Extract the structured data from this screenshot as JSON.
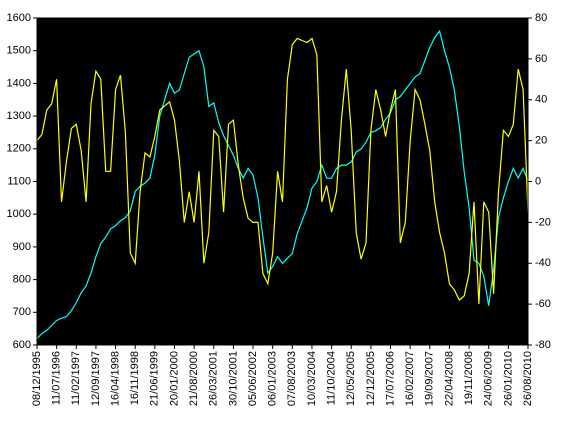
{
  "chart_data": {
    "type": "line",
    "categories": [
      "08/12/1995",
      null,
      null,
      null,
      "11/07/1996",
      null,
      null,
      null,
      "11/02/1997",
      null,
      null,
      null,
      "12/09/1997",
      null,
      null,
      null,
      "16/04/1998",
      null,
      null,
      null,
      "16/11/1998",
      null,
      null,
      null,
      "21/06/1999",
      null,
      null,
      null,
      "20/01/2000",
      null,
      null,
      null,
      "21/08/2000",
      null,
      null,
      null,
      "26/03/2001",
      null,
      null,
      null,
      "30/10/2001",
      null,
      null,
      null,
      "05/06/2002",
      null,
      null,
      null,
      "06/01/2003",
      null,
      null,
      null,
      "07/08/2003",
      null,
      null,
      null,
      "10/03/2004",
      null,
      null,
      null,
      "11/10/2004",
      null,
      null,
      null,
      "12/05/2005",
      null,
      null,
      null,
      "12/12/2005",
      null,
      null,
      null,
      "17/07/2006",
      null,
      null,
      null,
      "16/02/2007",
      null,
      null,
      null,
      "19/09/2007",
      null,
      null,
      null,
      "22/04/2008",
      null,
      null,
      null,
      "19/11/2008",
      null,
      null,
      null,
      "24/06/2009",
      null,
      null,
      null,
      "26/01/2010",
      null,
      null,
      null,
      "26/08/2010"
    ],
    "series": [
      {
        "color": "#00ffff",
        "axis": "y",
        "values": [
          620,
          635,
          645,
          660,
          675,
          682,
          687,
          705,
          730,
          760,
          780,
          820,
          870,
          910,
          930,
          955,
          965,
          980,
          990,
          1010,
          1070,
          1085,
          1095,
          1110,
          1180,
          1300,
          1350,
          1400,
          1370,
          1380,
          1430,
          1480,
          1490,
          1500,
          1450,
          1330,
          1340,
          1280,
          1240,
          1210,
          1180,
          1140,
          1110,
          1140,
          1120,
          1050,
          930,
          820,
          840,
          870,
          850,
          865,
          880,
          940,
          980,
          1020,
          1080,
          1100,
          1150,
          1110,
          1110,
          1140,
          1150,
          1150,
          1160,
          1190,
          1200,
          1220,
          1250,
          1255,
          1265,
          1290,
          1310,
          1350,
          1360,
          1380,
          1400,
          1420,
          1430,
          1470,
          1510,
          1540,
          1560,
          1500,
          1450,
          1380,
          1270,
          1130,
          1020,
          860,
          850,
          810,
          720,
          830,
          990,
          1050,
          1100,
          1140,
          1110,
          1140,
          1100
        ]
      },
      {
        "color": "#ffff00",
        "axis": "y2",
        "values": [
          20,
          23,
          35,
          38,
          50,
          -10,
          10,
          26,
          28,
          15,
          -10,
          38,
          54,
          50,
          5,
          5,
          45,
          52,
          24,
          -35,
          -40,
          -5,
          14,
          12,
          22,
          35,
          37,
          39,
          30,
          10,
          -20,
          -5,
          -20,
          5,
          -40,
          -25,
          25,
          22,
          -15,
          28,
          30,
          8,
          -8,
          -18,
          -20,
          -20,
          -45,
          -50,
          -35,
          5,
          -10,
          50,
          67,
          70,
          69,
          68,
          70,
          62,
          -10,
          -2,
          -15,
          -5,
          30,
          55,
          25,
          -25,
          -38,
          -30,
          25,
          45,
          35,
          22,
          35,
          45,
          -30,
          -20,
          20,
          45,
          40,
          28,
          15,
          -10,
          -25,
          -35,
          -50,
          -53,
          -58,
          -56,
          -45,
          -10,
          -60,
          -10,
          -15,
          -55,
          -5,
          25,
          22,
          28,
          55,
          45,
          -15
        ]
      }
    ],
    "ylim": [
      600,
      1600
    ],
    "yticks": [
      600,
      700,
      800,
      900,
      1000,
      1100,
      1200,
      1300,
      1400,
      1500,
      1600
    ],
    "y2lim": [
      -80,
      80
    ],
    "y2ticks": [
      -80,
      -60,
      -40,
      -20,
      0,
      20,
      40,
      60,
      80
    ],
    "plot_background": "#000000"
  }
}
